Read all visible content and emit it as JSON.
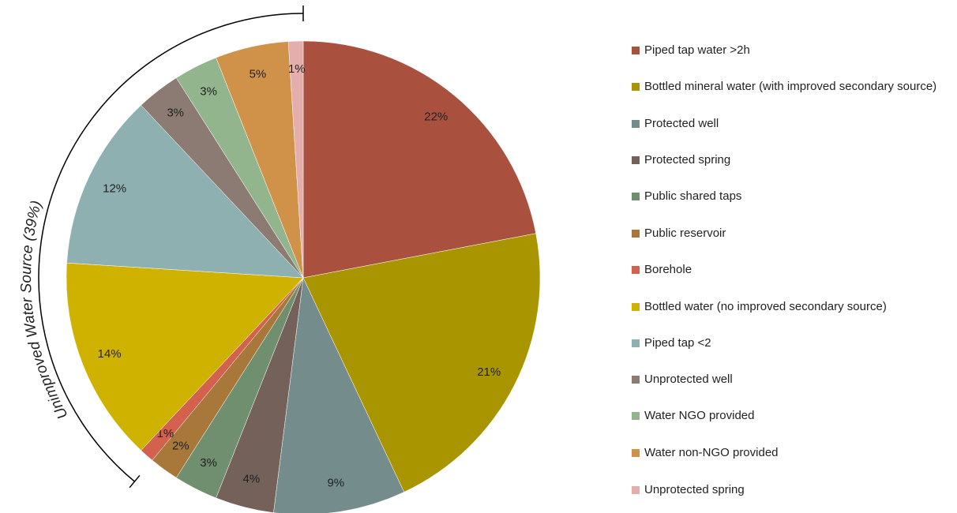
{
  "chart_data": {
    "type": "pie",
    "categories": [
      "Piped tap water >2h",
      "Bottled mineral water (with improved secondary source)",
      "Protected well",
      "Protected spring",
      "Public shared taps",
      "Public reservoir",
      "Borehole",
      "Bottled water (no improved secondary source)",
      "Piped tap <2",
      "Unprotected well",
      "Water NGO provided",
      "Water non-NGO provided",
      "Unprotected spring"
    ],
    "values": [
      22,
      21,
      9,
      4,
      3,
      2,
      1,
      14,
      12,
      3,
      3,
      5,
      1
    ],
    "value_labels": [
      "22%",
      "21%",
      "9%",
      "4%",
      "3%",
      "2%",
      "1%",
      "14%",
      "12%",
      "3%",
      "3%",
      "5%",
      "1%"
    ],
    "colors": [
      "#a9513e",
      "#a99500",
      "#748d8c",
      "#73615a",
      "#6f8f6e",
      "#a8773a",
      "#d3614e",
      "#cfb200",
      "#8fb0b1",
      "#8c7b72",
      "#93b58e",
      "#d09249",
      "#e3aeab"
    ],
    "annotation": "Unimproved Water Source (39%)",
    "legend": "right"
  }
}
